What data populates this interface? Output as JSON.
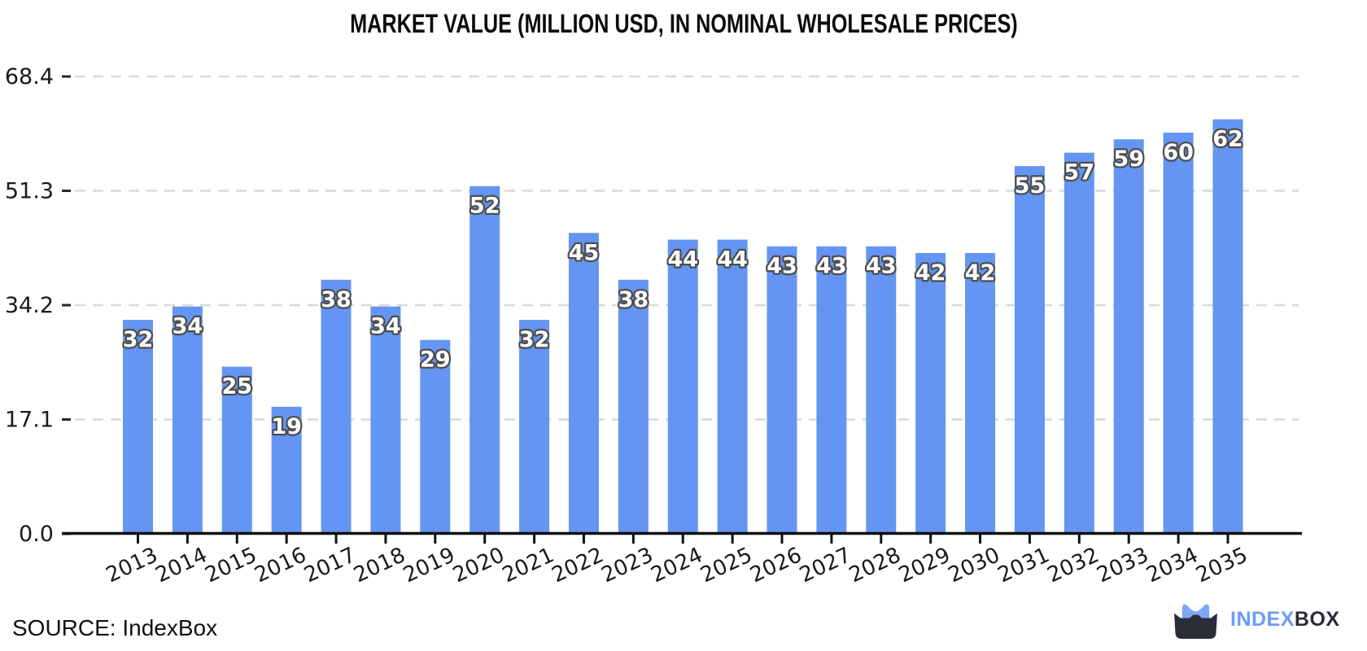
{
  "chart_data": {
    "type": "bar",
    "title": "MARKET VALUE (MILLION USD, IN NOMINAL WHOLESALE PRICES)",
    "categories": [
      "2013",
      "2014",
      "2015",
      "2016",
      "2017",
      "2018",
      "2019",
      "2020",
      "2021",
      "2022",
      "2023",
      "2024",
      "2025",
      "2026",
      "2027",
      "2028",
      "2029",
      "2030",
      "2031",
      "2032",
      "2033",
      "2034",
      "2035"
    ],
    "values": [
      32,
      34,
      25,
      19,
      38,
      34,
      29,
      52,
      32,
      45,
      38,
      44,
      44,
      43,
      43,
      43,
      42,
      42,
      55,
      57,
      59,
      60,
      62
    ],
    "ylim": [
      0,
      68.4
    ],
    "yticks": [
      0.0,
      17.1,
      34.2,
      51.3,
      68.4
    ],
    "ytick_labels": [
      "0.0",
      "17.1",
      "34.2",
      "51.3",
      "68.4"
    ],
    "xlabel": "",
    "ylabel": "",
    "grid": "horizontal-dashed",
    "legend": "none",
    "bar_value_labels_shown": true,
    "colors": {
      "bar": "#6495F2",
      "grid": "#D9D9D9",
      "axis": "#111111",
      "tick_text": "#1A1A1A",
      "value_label_fill": "#FFFFFF",
      "value_label_outline": "#4D4D4D"
    }
  },
  "footer": {
    "source_label": "SOURCE: IndexBox",
    "logo": {
      "part1": "INDEX",
      "part2": "BOX",
      "blue": "#6D9BF5",
      "dark": "#2A2C38"
    }
  }
}
